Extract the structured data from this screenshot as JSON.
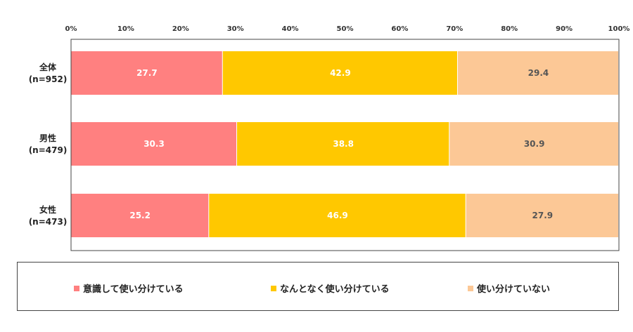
{
  "chart_data": {
    "type": "bar",
    "orientation": "horizontal",
    "stacked": true,
    "xlim": [
      0,
      100
    ],
    "x_ticks": [
      "0%",
      "10%",
      "20%",
      "30%",
      "40%",
      "50%",
      "60%",
      "70%",
      "80%",
      "90%",
      "100%"
    ],
    "categories": [
      {
        "label": "全体",
        "n": "(n=952)"
      },
      {
        "label": "男性",
        "n": "(n=479)"
      },
      {
        "label": "女性",
        "n": "(n=473)"
      }
    ],
    "series": [
      {
        "name": "意識して使い分けている",
        "color": "#ff8080",
        "label_color": "#ffffff",
        "values": [
          27.7,
          30.3,
          25.2
        ],
        "labels": [
          "27.7",
          "30.3",
          "25.2"
        ]
      },
      {
        "name": "なんとなく使い分けている",
        "color": "#ffc800",
        "label_color": "#ffffff",
        "values": [
          42.9,
          38.8,
          46.9
        ],
        "labels": [
          "42.9",
          "38.8",
          "46.9"
        ]
      },
      {
        "name": "使い分けていない",
        "color": "#fcc896",
        "label_color": "#555555",
        "values": [
          29.4,
          30.9,
          27.9
        ],
        "labels": [
          "29.4",
          "30.9",
          "27.9"
        ]
      }
    ],
    "legend_position": "bottom",
    "grid": false
  }
}
